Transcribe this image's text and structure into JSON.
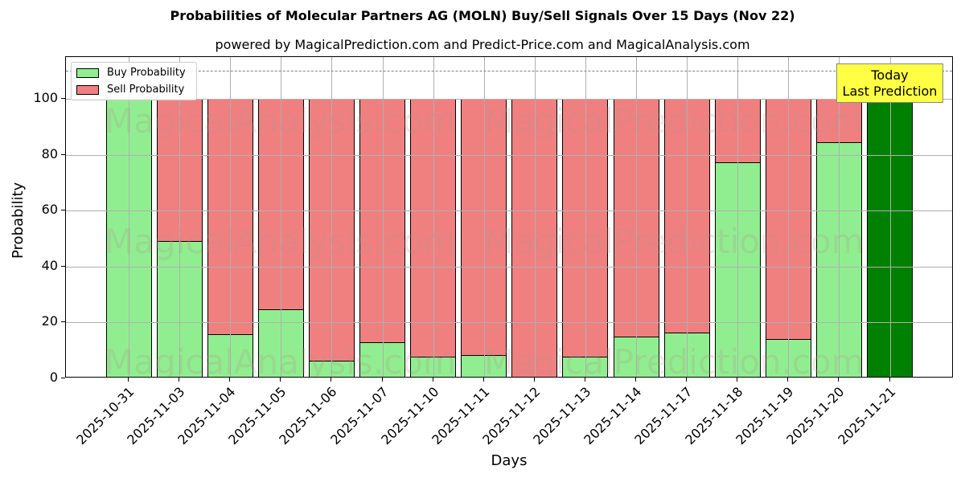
{
  "title": "Probabilities of Molecular Partners AG (MOLN) Buy/Sell Signals Over 15 Days (Nov 22)",
  "subtitle": "powered by MagicalPrediction.com and Predict-Price.com and MagicalAnalysis.com",
  "legend": {
    "buy": "Buy Probability",
    "sell": "Sell Probability"
  },
  "annotation": {
    "line1": "Today",
    "line2": "Last Prediction"
  },
  "watermarks": [
    "MagicalAnalysis.com",
    "MagicalPrediction.com"
  ],
  "colors": {
    "buy": "#90ee90",
    "sell": "#f08080",
    "today": "#008000",
    "annotation_bg": "#ffff44"
  },
  "chart_data": {
    "type": "bar",
    "stacked": true,
    "title": "Probabilities of Molecular Partners AG (MOLN) Buy/Sell Signals Over 15 Days (Nov 22)",
    "subtitle": "powered by MagicalPrediction.com and Predict-Price.com and MagicalAnalysis.com",
    "xlabel": "Days",
    "ylabel": "Probability",
    "ylim": [
      0,
      115
    ],
    "yticks": [
      0,
      20,
      40,
      60,
      80,
      100
    ],
    "grid": true,
    "legend_position": "upper left",
    "reference_line": {
      "y": 110,
      "style": "dashed",
      "color": "#808080"
    },
    "categories": [
      "2025-10-31",
      "2025-11-03",
      "2025-11-04",
      "2025-11-05",
      "2025-11-06",
      "2025-11-07",
      "2025-11-10",
      "2025-11-11",
      "2025-11-12",
      "2025-11-13",
      "2025-11-14",
      "2025-11-17",
      "2025-11-18",
      "2025-11-19",
      "2025-11-20",
      "2025-11-21"
    ],
    "series": [
      {
        "name": "Buy Probability",
        "values": [
          100,
          49.4,
          15.9,
          24.9,
          6.4,
          13.0,
          7.8,
          8.4,
          0,
          7.8,
          15.0,
          16.5,
          77.5,
          14.2,
          84.7,
          100
        ]
      },
      {
        "name": "Sell Probability",
        "values": [
          0,
          50.6,
          84.1,
          75.1,
          93.6,
          87.0,
          92.2,
          91.6,
          100,
          92.2,
          85.0,
          83.5,
          22.5,
          85.8,
          15.3,
          0
        ]
      }
    ],
    "annotations": [
      {
        "text": "Today\nLast Prediction",
        "x": "2025-11-21"
      }
    ]
  }
}
